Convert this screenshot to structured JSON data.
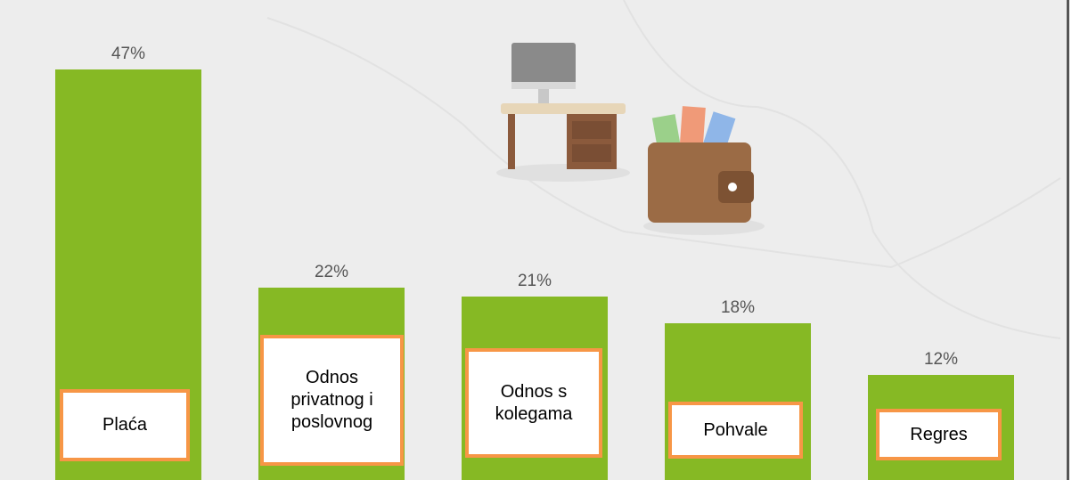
{
  "chart_data": {
    "type": "bar",
    "categories": [
      "Plaća",
      "Odnos privatnog i poslovnog",
      "Odnos s kolegama",
      "Pohvale",
      "Regres"
    ],
    "values": [
      47,
      22,
      21,
      18,
      12
    ],
    "value_labels": [
      "47%",
      "22%",
      "21%",
      "18%",
      "12%"
    ],
    "color": "#86b924",
    "ylim": [
      0,
      55
    ]
  }
}
